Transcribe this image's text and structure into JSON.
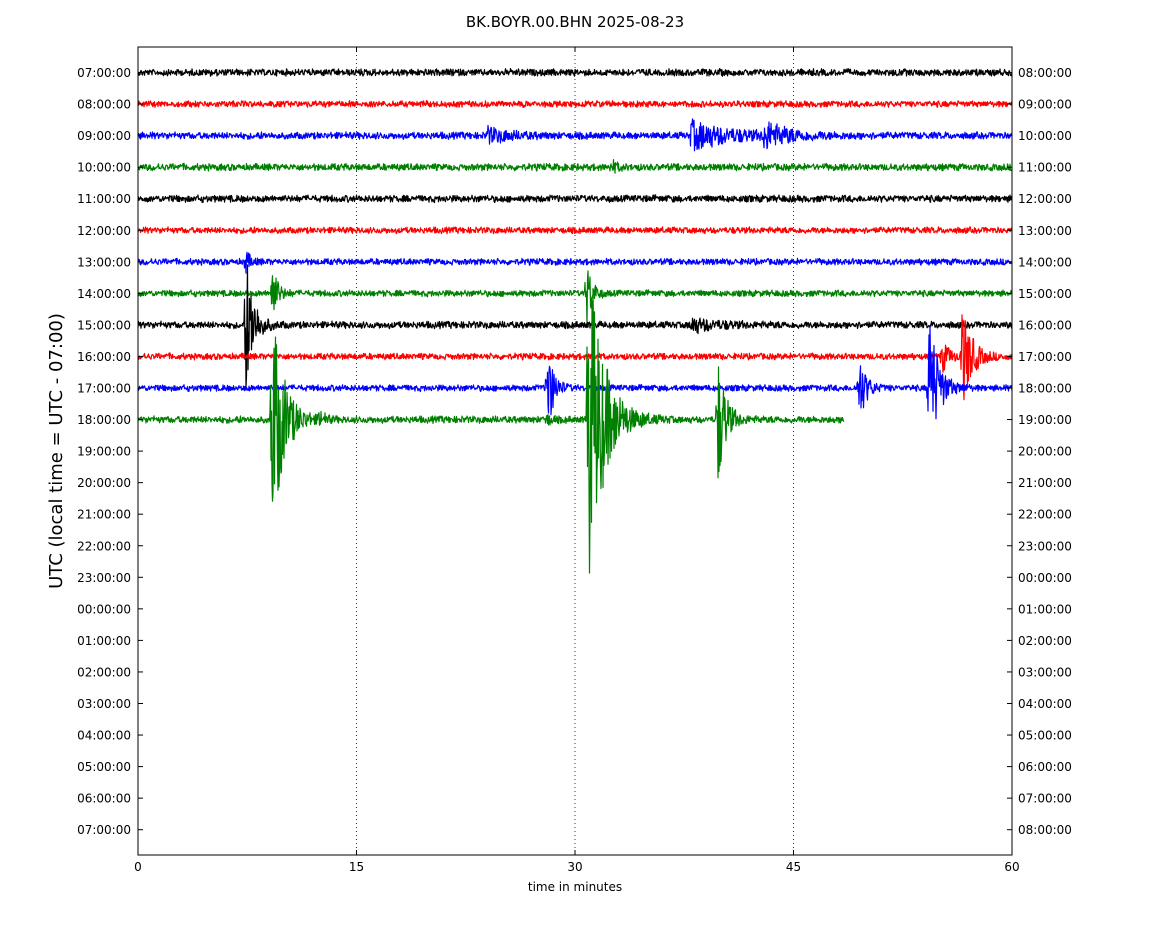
{
  "chart_data": {
    "type": "line",
    "title": "BK.BOYR.00.BHN 2025-08-23",
    "xlabel": "time in minutes",
    "ylabel": "UTC (local time = UTC - 07:00)",
    "xlim": [
      0,
      60
    ],
    "x_ticks": [
      0,
      15,
      30,
      45,
      60
    ],
    "grid": "vertical dotted at 15, 30, 45",
    "left_tick_labels": [
      "07:00:00",
      "08:00:00",
      "09:00:00",
      "10:00:00",
      "11:00:00",
      "12:00:00",
      "13:00:00",
      "14:00:00",
      "15:00:00",
      "16:00:00",
      "17:00:00",
      "18:00:00",
      "19:00:00",
      "20:00:00",
      "21:00:00",
      "22:00:00",
      "23:00:00",
      "00:00:00",
      "01:00:00",
      "02:00:00",
      "03:00:00",
      "04:00:00",
      "05:00:00",
      "06:00:00",
      "07:00:00"
    ],
    "right_tick_labels": [
      "08:00:00",
      "09:00:00",
      "10:00:00",
      "11:00:00",
      "12:00:00",
      "13:00:00",
      "14:00:00",
      "15:00:00",
      "16:00:00",
      "17:00:00",
      "18:00:00",
      "19:00:00",
      "20:00:00",
      "21:00:00",
      "22:00:00",
      "23:00:00",
      "00:00:00",
      "01:00:00",
      "02:00:00",
      "03:00:00",
      "04:00:00",
      "05:00:00",
      "06:00:00",
      "07:00:00",
      "08:00:00"
    ],
    "trace_colors": [
      "#000000",
      "#ff0000",
      "#0000ff",
      "#008000"
    ],
    "traces": [
      {
        "row": 0,
        "color": "#000000",
        "start_min": 0,
        "end_min": 60,
        "noise": 0.1,
        "events": []
      },
      {
        "row": 1,
        "color": "#ff0000",
        "start_min": 0,
        "end_min": 60,
        "noise": 0.09,
        "events": []
      },
      {
        "row": 2,
        "color": "#0000ff",
        "start_min": 0,
        "end_min": 60,
        "noise": 0.1,
        "events": [
          {
            "t": 24,
            "amp": 0.22,
            "dur": 3
          },
          {
            "t": 38,
            "amp": 0.45,
            "dur": 5
          },
          {
            "t": 43,
            "amp": 0.4,
            "dur": 3
          }
        ]
      },
      {
        "row": 3,
        "color": "#008000",
        "start_min": 0,
        "end_min": 60,
        "noise": 0.1,
        "events": [
          {
            "t": 32.5,
            "amp": 0.18,
            "dur": 0.8
          }
        ]
      },
      {
        "row": 4,
        "color": "#000000",
        "start_min": 0,
        "end_min": 60,
        "noise": 0.1,
        "events": []
      },
      {
        "row": 5,
        "color": "#ff0000",
        "start_min": 0,
        "end_min": 60,
        "noise": 0.09,
        "events": []
      },
      {
        "row": 6,
        "color": "#0000ff",
        "start_min": 0,
        "end_min": 60,
        "noise": 0.09,
        "events": [
          {
            "t": 7.4,
            "amp": 0.35,
            "dur": 0.6
          }
        ]
      },
      {
        "row": 7,
        "color": "#008000",
        "start_min": 0,
        "end_min": 60,
        "noise": 0.09,
        "events": [
          {
            "t": 9.2,
            "amp": 1.0,
            "dur": 0.7
          },
          {
            "t": 30.8,
            "amp": 1.1,
            "dur": 0.7
          }
        ]
      },
      {
        "row": 8,
        "color": "#000000",
        "start_min": 0,
        "end_min": 60,
        "noise": 0.1,
        "events": [
          {
            "t": 7.4,
            "amp": 2.4,
            "dur": 1.0
          },
          {
            "t": 38,
            "amp": 0.22,
            "dur": 3
          }
        ]
      },
      {
        "row": 9,
        "color": "#ff0000",
        "start_min": 0,
        "end_min": 60,
        "noise": 0.09,
        "events": [
          {
            "t": 55.2,
            "amp": 0.5,
            "dur": 1.0
          },
          {
            "t": 56.6,
            "amp": 1.7,
            "dur": 1.2
          }
        ]
      },
      {
        "row": 10,
        "color": "#0000ff",
        "start_min": 0,
        "end_min": 60,
        "noise": 0.09,
        "events": [
          {
            "t": 28.1,
            "amp": 1.5,
            "dur": 0.8
          },
          {
            "t": 49.5,
            "amp": 1.1,
            "dur": 0.9
          },
          {
            "t": 54.3,
            "amp": 2.5,
            "dur": 1.2
          }
        ]
      },
      {
        "row": 11,
        "color": "#008000",
        "start_min": 0,
        "end_min": 48.5,
        "noise": 0.1,
        "events": [
          {
            "t": 9.2,
            "amp": 4.0,
            "dur": 1.5
          },
          {
            "t": 12.5,
            "amp": 0.2,
            "dur": 0.6
          },
          {
            "t": 28.0,
            "amp": 0.2,
            "dur": 0.6
          },
          {
            "t": 30.9,
            "amp": 5.8,
            "dur": 2.0
          },
          {
            "t": 39.8,
            "amp": 2.2,
            "dur": 1.0
          }
        ]
      }
    ]
  }
}
